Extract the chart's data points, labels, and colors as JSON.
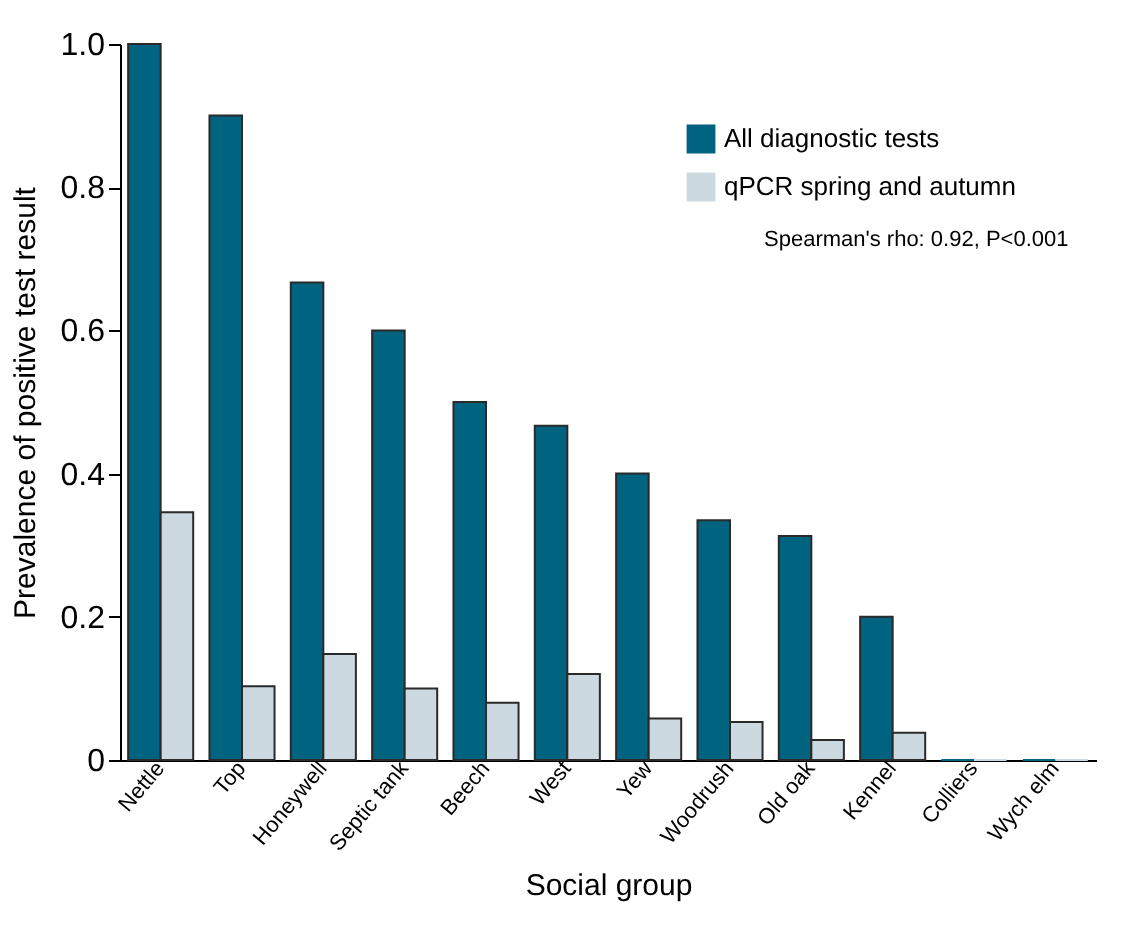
{
  "chart_data": {
    "type": "bar",
    "xlabel": "Social group",
    "ylabel": "Prevalence of positive test result",
    "categories": [
      "Nettle",
      "Top",
      "Honeywell",
      "Septic tank",
      "Beech",
      "West",
      "Yew",
      "Woodrush",
      "Old oak",
      "Kennel",
      "Colliers",
      "Wych elm"
    ],
    "series": [
      {
        "name": "All diagnostic tests",
        "color": "#00637f",
        "values": [
          1.0,
          0.9,
          0.667,
          0.6,
          0.5,
          0.467,
          0.4,
          0.335,
          0.313,
          0.2,
          0,
          0
        ]
      },
      {
        "name": "qPCR spring and autumn",
        "color": "#ccd9e1",
        "values": [
          0.346,
          0.103,
          0.148,
          0.1,
          0.08,
          0.12,
          0.058,
          0.053,
          0.028,
          0.038,
          0,
          0
        ]
      }
    ],
    "ylim": [
      0,
      1.0
    ],
    "yticks": [
      0,
      {
        "value": 0.2,
        "label": "0.2"
      },
      {
        "value": 0.4,
        "label": "0.4"
      },
      {
        "value": 0.6,
        "label": "0.6"
      },
      {
        "value": 0.8,
        "label": "0.8"
      },
      {
        "value": 1.0,
        "label": "1.0"
      }
    ],
    "grid": false,
    "legend": "top right",
    "annotations": [
      "Spearman's rho: 0.92, P<0.001"
    ]
  }
}
